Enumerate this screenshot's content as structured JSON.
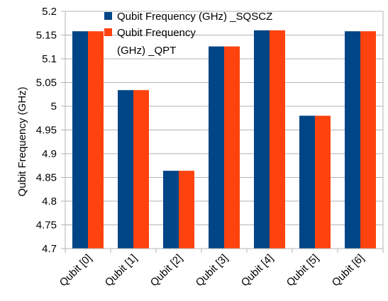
{
  "colors": {
    "series_sqscz": "#004586",
    "series_qpt": "#ff420e",
    "grid": "#b3b3b3",
    "background": "#ffffff"
  },
  "chart_data": {
    "type": "bar",
    "title": "",
    "xlabel": "",
    "ylabel": "Qubit Frequency (GHz)",
    "categories": [
      "Qubit [0]",
      "Qubit [1]",
      "Qubit [2]",
      "Qubit [3]",
      "Qubit [4]",
      "Qubit [5]",
      "Qubit [6]"
    ],
    "series": [
      {
        "name": "Qubit Frequency (GHz) _SQSCZ",
        "values": [
          5.158,
          5.034,
          4.864,
          5.126,
          5.16,
          4.98,
          5.158
        ]
      },
      {
        "name": "Qubit Frequency (GHz) _QPT",
        "values": [
          5.158,
          5.034,
          4.864,
          5.126,
          5.16,
          4.98,
          5.158
        ]
      }
    ],
    "legend_lines": [
      [
        "Qubit Frequency (GHz) _SQSCZ"
      ],
      [
        "Qubit Frequency",
        "(GHz) _QPT"
      ]
    ],
    "ylim": [
      4.7,
      5.2
    ],
    "yticks": [
      "4.7",
      "4.75",
      "4.8",
      "4.85",
      "4.9",
      "4.95",
      "5",
      "5.05",
      "5.1",
      "5.15",
      "5.2"
    ],
    "grid": true,
    "legend_position": "top-left inside plot"
  }
}
